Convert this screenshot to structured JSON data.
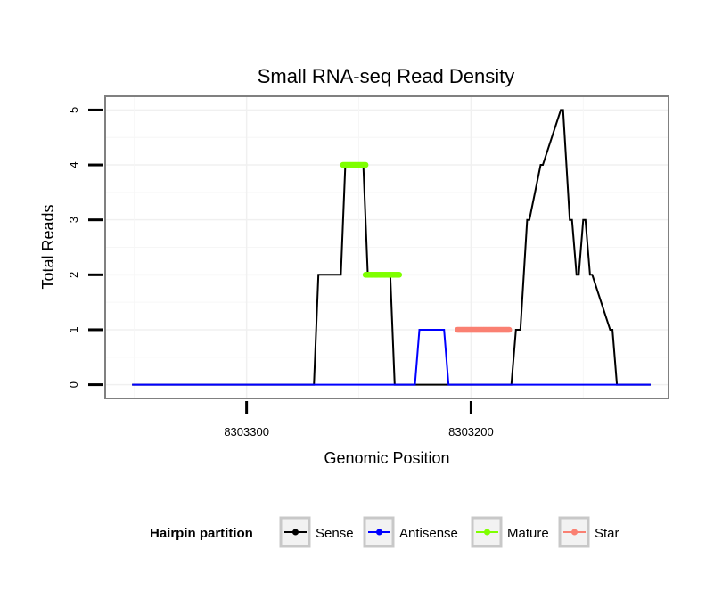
{
  "chart_data": {
    "type": "line",
    "title": "Small RNA-seq Read Density",
    "xlabel": "Genomic Position",
    "ylabel": "Total Reads",
    "x_reversed": true,
    "xlim": [
      8303363,
      8303112
    ],
    "ylim": [
      -0.25,
      5.25
    ],
    "y_ticks": [
      0,
      1,
      2,
      3,
      4,
      5
    ],
    "x_ticks": [
      8303300,
      8303200
    ],
    "grid": true,
    "legend": {
      "title": "Hairpin partition",
      "placement": "bottom",
      "entries": [
        {
          "name": "Sense",
          "color": "#000000"
        },
        {
          "name": "Antisense",
          "color": "#0000ff"
        },
        {
          "name": "Mature",
          "color": "#7fff00"
        },
        {
          "name": "Star",
          "color": "#fa8072"
        }
      ]
    },
    "series": [
      {
        "name": "Sense",
        "color": "#000000",
        "style": "line",
        "x": [
          8303351,
          8303270,
          8303268,
          8303258,
          8303256,
          8303248,
          8303246,
          8303236,
          8303234,
          8303224,
          8303222,
          8303207,
          8303205,
          8303190,
          8303188,
          8303182,
          8303180,
          8303178,
          8303175,
          8303174,
          8303169,
          8303168,
          8303160,
          8303159,
          8303156,
          8303155,
          8303153,
          8303152,
          8303150,
          8303149,
          8303147,
          8303146,
          8303138,
          8303137,
          8303135,
          8303134,
          8303120
        ],
        "y": [
          0,
          0,
          2,
          2,
          4,
          4,
          2,
          2,
          0,
          0,
          0,
          0,
          0,
          0,
          0,
          0,
          1,
          1,
          3,
          3,
          4,
          4,
          5,
          5,
          3,
          3,
          2,
          2,
          3,
          3,
          2,
          2,
          1,
          1,
          0,
          0,
          0
        ]
      },
      {
        "name": "Antisense",
        "color": "#0000ff",
        "style": "line",
        "x": [
          8303351,
          8303225,
          8303223,
          8303212,
          8303210,
          8303134,
          8303120
        ],
        "y": [
          0,
          0,
          1,
          1,
          0,
          0,
          0
        ]
      },
      {
        "name": "Mature",
        "color": "#7fff00",
        "style": "points",
        "segments": [
          {
            "x": [
              8303257,
              8303247
            ],
            "y": 4
          },
          {
            "x": [
              8303247,
              8303232
            ],
            "y": 2
          }
        ]
      },
      {
        "name": "Star",
        "color": "#fa8072",
        "style": "points",
        "segments": [
          {
            "x": [
              8303206,
              8303183
            ],
            "y": 1
          }
        ]
      }
    ]
  }
}
